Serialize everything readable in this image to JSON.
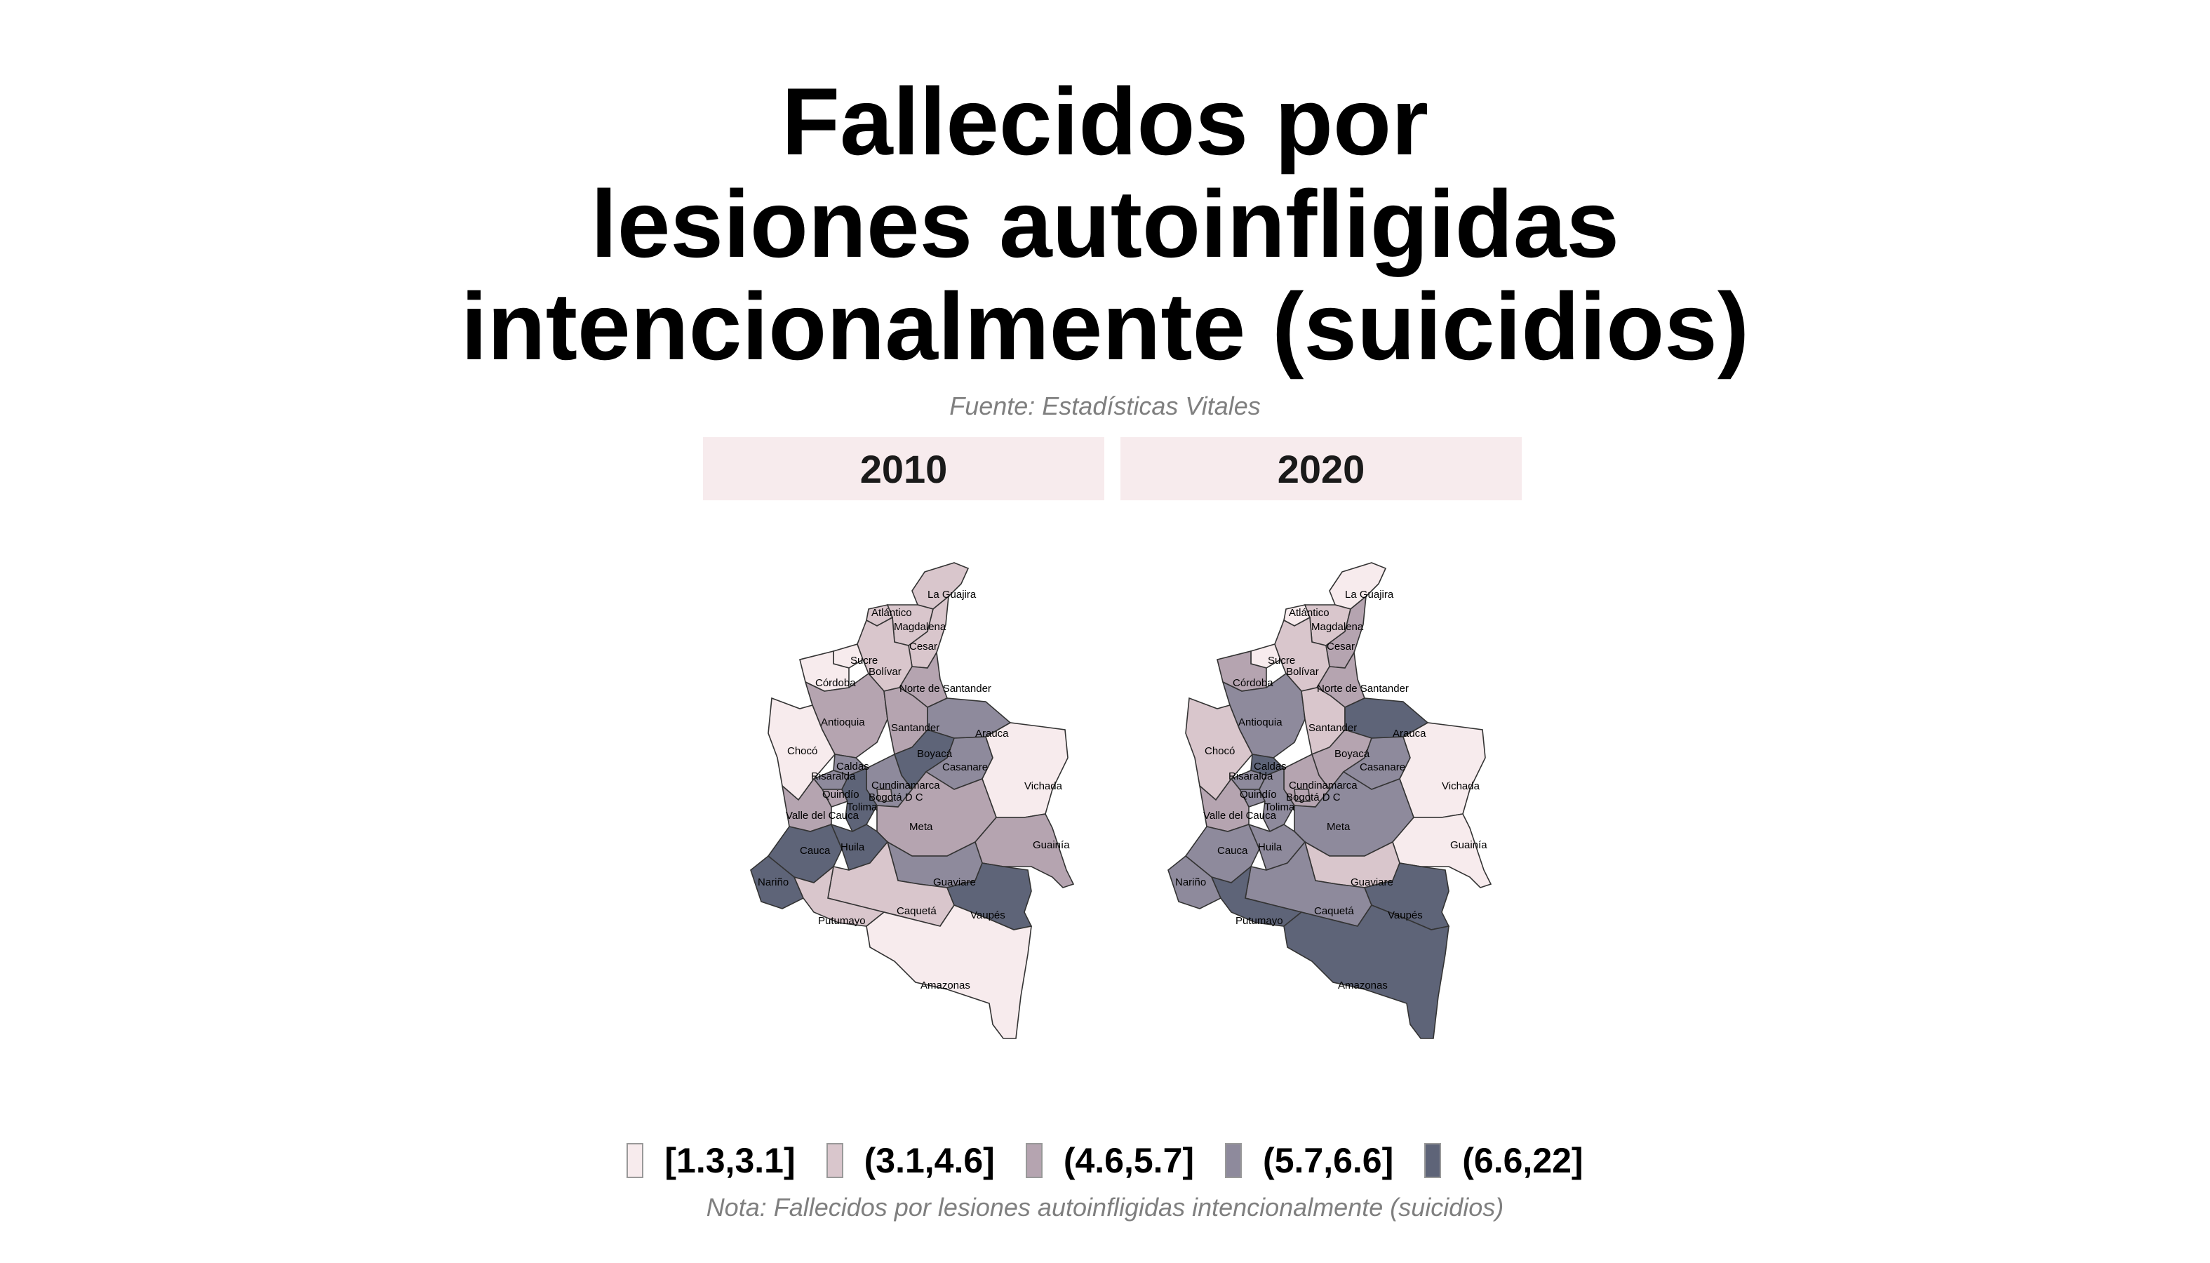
{
  "title": [
    "Fallecidos por",
    "lesiones autoinfligidas",
    "intencionalmente (suicidios)"
  ],
  "subtitle": "Fuente: Estadísticas Vitales",
  "note": "Nota: Fallecidos por lesiones autoinfligidas intencionalmente (suicidios)",
  "legend": [
    {
      "label": "[1.3,3.1]",
      "color": "#f7ebed"
    },
    {
      "label": "(3.1,4.6]",
      "color": "#d9c6cc"
    },
    {
      "label": "(4.6,5.7]",
      "color": "#b5a4b0"
    },
    {
      "label": "(5.7,6.6]",
      "color": "#8e8a9c"
    },
    {
      "label": "(6.6,22]",
      "color": "#5e6478"
    }
  ],
  "panels": [
    {
      "year": "2010",
      "classes": {
        "La Guajira": 1,
        "Atlántico": 1,
        "Magdalena": 1,
        "Cesar": 1,
        "Sucre": 0,
        "Bolívar": 1,
        "Córdoba": 0,
        "Norte de Santander": 2,
        "Antioquia": 2,
        "Santander": 2,
        "Arauca": 3,
        "Chocó": 0,
        "Boyacá": 4,
        "Casanare": 3,
        "Vichada": 0,
        "Caldas": 3,
        "Risaralda": 3,
        "Cundinamarca": 3,
        "Quindío": 2,
        "Bogotá D C": 2,
        "Tolima": 4,
        "Valle del Cauca": 2,
        "Meta": 2,
        "Guainía": 2,
        "Cauca": 4,
        "Huila": 4,
        "Nariño": 4,
        "Guaviare": 3,
        "Caquetá": 1,
        "Putumayo": 1,
        "Vaupés": 4,
        "Amazonas": 0
      }
    },
    {
      "year": "2020",
      "classes": {
        "La Guajira": 0,
        "Atlántico": 0,
        "Magdalena": 1,
        "Cesar": 2,
        "Sucre": 0,
        "Bolívar": 1,
        "Córdoba": 2,
        "Norte de Santander": 2,
        "Antioquia": 3,
        "Santander": 1,
        "Arauca": 4,
        "Chocó": 1,
        "Boyacá": 2,
        "Casanare": 3,
        "Vichada": 0,
        "Caldas": 4,
        "Risaralda": 3,
        "Cundinamarca": 2,
        "Quindío": 3,
        "Bogotá D C": 2,
        "Tolima": 3,
        "Valle del Cauca": 2,
        "Meta": 3,
        "Guainía": 0,
        "Cauca": 3,
        "Huila": 3,
        "Nariño": 3,
        "Guaviare": 1,
        "Caquetá": 3,
        "Putumayo": 4,
        "Vaupés": 4,
        "Amazonas": 4
      }
    }
  ]
}
